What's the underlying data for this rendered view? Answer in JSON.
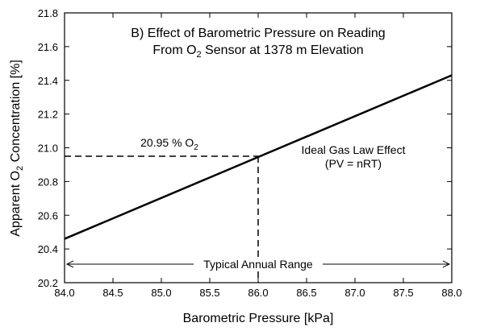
{
  "chart_data": {
    "type": "line",
    "title_line1": "B) Effect of Barometric Pressure on Reading",
    "title_line2_pre": "From O",
    "title_line2_sub": "2",
    "title_line2_post": " Sensor at 1378 m Elevation",
    "xlabel": "Barometric Pressure [kPa]",
    "ylabel_pre": "Apparent O",
    "ylabel_sub": "2",
    "ylabel_post": " Concentration [%]",
    "xlim": [
      84.0,
      88.0
    ],
    "ylim": [
      20.2,
      21.8
    ],
    "x_ticks": [
      "84.0",
      "84.5",
      "85.0",
      "85.5",
      "86.0",
      "86.5",
      "87.0",
      "87.5",
      "88.0"
    ],
    "y_ticks": [
      "20.2",
      "20.4",
      "20.6",
      "20.8",
      "21.0",
      "21.2",
      "21.4",
      "21.6",
      "21.8"
    ],
    "grid": false,
    "series": [
      {
        "x": [
          84.0,
          88.0
        ],
        "y": [
          20.46,
          21.43
        ],
        "color": "#000000",
        "style": "solid"
      }
    ],
    "reference": {
      "x": 86.0,
      "y": 20.95,
      "label_pre": "20.95 % O",
      "label_sub": "2"
    },
    "range_arrow": {
      "x": [
        84.0,
        88.0
      ],
      "y": 20.31,
      "label": "Typical Annual Range"
    },
    "annotation_line1": "Ideal Gas Law Effect",
    "annotation_line2": "(PV = nRT)"
  }
}
